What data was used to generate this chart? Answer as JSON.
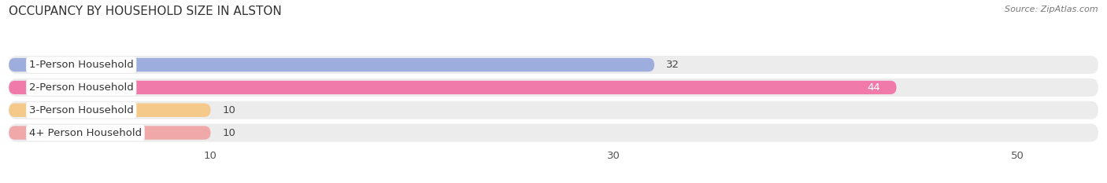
{
  "title": "OCCUPANCY BY HOUSEHOLD SIZE IN ALSTON",
  "source": "Source: ZipAtlas.com",
  "categories": [
    "1-Person Household",
    "2-Person Household",
    "3-Person Household",
    "4+ Person Household"
  ],
  "values": [
    32,
    44,
    10,
    10
  ],
  "bar_colors": [
    "#9daede",
    "#f07baa",
    "#f5c98a",
    "#f0a8a8"
  ],
  "bar_label_colors": [
    "#444444",
    "#ffffff",
    "#444444",
    "#444444"
  ],
  "xlim_max": 54,
  "xticks": [
    10,
    30,
    50
  ],
  "background_color": "#ffffff",
  "row_bg_color": "#ececec",
  "title_fontsize": 11,
  "label_fontsize": 9.5,
  "tick_fontsize": 9.5,
  "value_fontsize": 9.5,
  "figsize": [
    14.06,
    2.33
  ],
  "dpi": 100
}
